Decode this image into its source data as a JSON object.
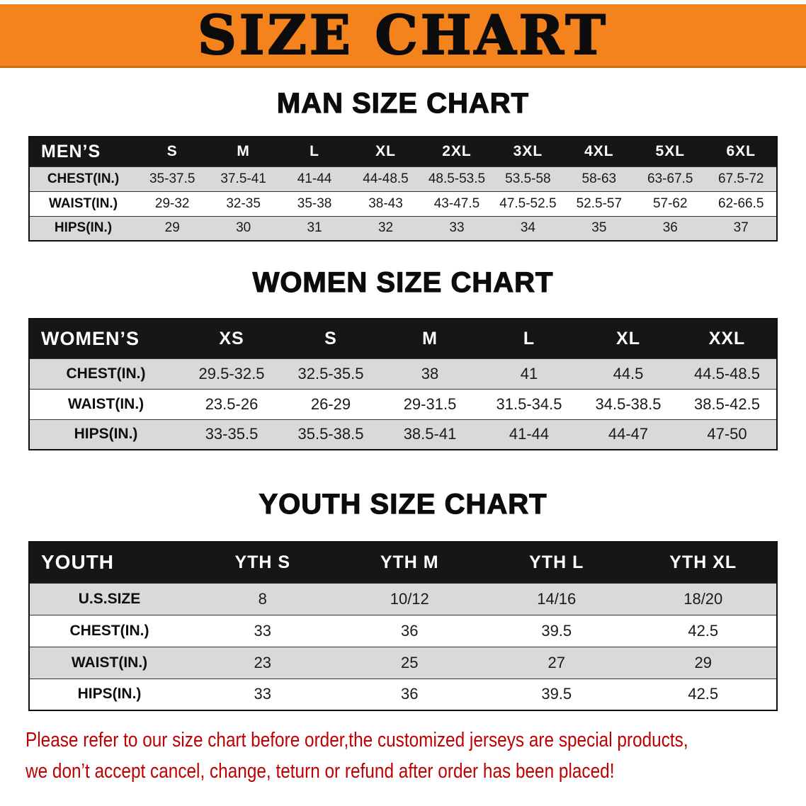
{
  "banner": {
    "title": "SIZE CHART"
  },
  "colors": {
    "banner_bg": "#F5831D",
    "table_header_bg": "#161616",
    "row_alt_bg": "#D9D9D9",
    "disclaimer_red": "#C00000"
  },
  "sections": [
    {
      "heading": "MAN SIZE CHART",
      "table": {
        "header": [
          "MEN’S",
          "S",
          "M",
          "L",
          "XL",
          "2XL",
          "3XL",
          "4XL",
          "5XL",
          "6XL"
        ],
        "rows": [
          [
            "CHEST(IN.)",
            "35-37.5",
            "37.5-41",
            "41-44",
            "44-48.5",
            "48.5-53.5",
            "53.5-58",
            "58-63",
            "63-67.5",
            "67.5-72"
          ],
          [
            "WAIST(IN.)",
            "29-32",
            "32-35",
            "35-38",
            "38-43",
            "43-47.5",
            "47.5-52.5",
            "52.5-57",
            "57-62",
            "62-66.5"
          ],
          [
            "HIPS(IN.)",
            "29",
            "30",
            "31",
            "32",
            "33",
            "34",
            "35",
            "36",
            "37"
          ]
        ]
      }
    },
    {
      "heading": "WOMEN SIZE CHART",
      "table": {
        "header": [
          "WOMEN’S",
          "XS",
          "S",
          "M",
          "L",
          "XL",
          "XXL"
        ],
        "rows": [
          [
            "CHEST(IN.)",
            "29.5-32.5",
            "32.5-35.5",
            "38",
            "41",
            "44.5",
            "44.5-48.5"
          ],
          [
            "WAIST(IN.)",
            "23.5-26",
            "26-29",
            "29-31.5",
            "31.5-34.5",
            "34.5-38.5",
            "38.5-42.5"
          ],
          [
            "HIPS(IN.)",
            "33-35.5",
            "35.5-38.5",
            "38.5-41",
            "41-44",
            "44-47",
            "47-50"
          ]
        ]
      }
    },
    {
      "heading": "YOUTH SIZE CHART",
      "table": {
        "header": [
          "YOUTH",
          "YTH S",
          "YTH M",
          "YTH L",
          "YTH XL"
        ],
        "rows": [
          [
            "U.S.SIZE",
            "8",
            "10/12",
            "14/16",
            "18/20"
          ],
          [
            "CHEST(IN.)",
            "33",
            "36",
            "39.5",
            "42.5"
          ],
          [
            "WAIST(IN.)",
            "23",
            "25",
            "27",
            "29"
          ],
          [
            "HIPS(IN.)",
            "33",
            "36",
            "39.5",
            "42.5"
          ]
        ]
      }
    }
  ],
  "disclaimer": {
    "line1": "Please refer to our size chart before order,the customized jerseys are special products,",
    "line2": "we don’t accept cancel, change, teturn or refund after order has been placed!"
  }
}
